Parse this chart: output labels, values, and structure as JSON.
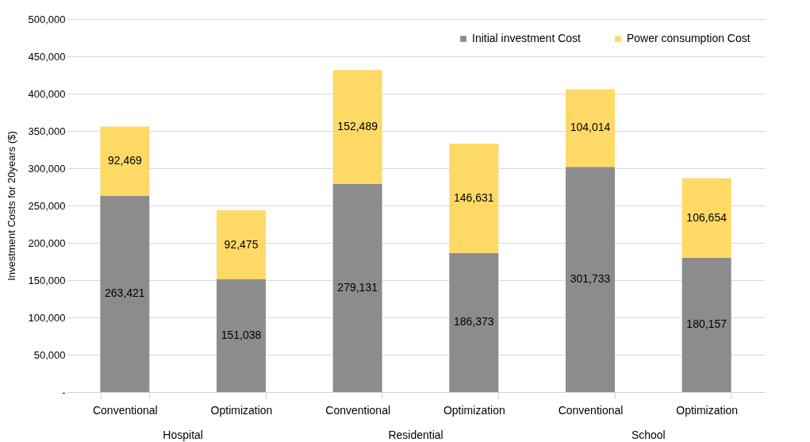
{
  "chart_data": {
    "type": "bar",
    "stacked": true,
    "ylabel": "Investment Costs for 20years ($)",
    "categories": [
      "Conventional",
      "Optimization",
      "Conventional",
      "Optimization",
      "Conventional",
      "Optimization"
    ],
    "series": [
      {
        "name": "Initial investment Cost",
        "color": "#8c8c8c",
        "values": [
          263421,
          151038,
          279131,
          186373,
          301733,
          180157
        ],
        "value_labels": [
          "263,421",
          "151,038",
          "279,131",
          "186,373",
          "301,733",
          "180,157"
        ]
      },
      {
        "name": "Power consumption Cost",
        "color": "#ffd966",
        "values": [
          92469,
          92475,
          152489,
          146631,
          104014,
          106654
        ],
        "value_labels": [
          "92,469",
          "92,475",
          "152,489",
          "146,631",
          "104,014",
          "106,654"
        ]
      }
    ],
    "ylim": [
      0,
      500000
    ],
    "yticks": [
      {
        "value": 0,
        "label": "-"
      },
      {
        "value": 50000,
        "label": "50,000"
      },
      {
        "value": 100000,
        "label": "100,000"
      },
      {
        "value": 150000,
        "label": "150,000"
      },
      {
        "value": 200000,
        "label": "200,000"
      },
      {
        "value": 250000,
        "label": "250,000"
      },
      {
        "value": 300000,
        "label": "300,000"
      },
      {
        "value": 350000,
        "label": "350,000"
      },
      {
        "value": 400000,
        "label": "400,000"
      },
      {
        "value": 450000,
        "label": "450,000"
      },
      {
        "value": 500000,
        "label": "500,000"
      }
    ],
    "grid": "y",
    "legend": "top right",
    "annotations": [
      "Hospital",
      "Residential",
      "School"
    ]
  }
}
